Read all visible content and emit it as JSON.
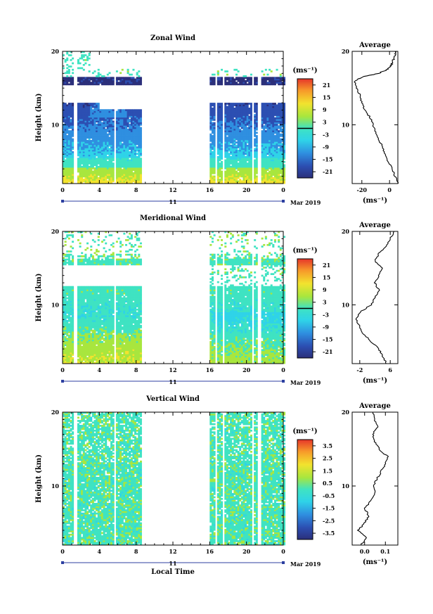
{
  "chart_data": [
    {
      "type": "heatmap",
      "title": "Zonal Wind",
      "ylabel": "Height (km)",
      "xlabel": "",
      "x_ticks": [
        "0",
        "4",
        "8",
        "12",
        "16",
        "20",
        "0"
      ],
      "y_ticks": [
        "10",
        "20"
      ],
      "xlim": [
        0,
        24
      ],
      "ylim": [
        2,
        20
      ],
      "date_day": "11",
      "date_label": "Mar 2019",
      "colorbar": {
        "unit_label": "(ms⁻¹)",
        "ticks": [
          "21",
          "15",
          "9",
          "3",
          "-3",
          "-9",
          "-15",
          "-21"
        ],
        "range": [
          -24,
          24
        ],
        "contour_value": 0
      },
      "data_gaps_hours": [
        [
          1.3,
          1.6
        ],
        [
          5.6,
          5.9
        ],
        [
          8.6,
          16.0
        ],
        [
          16.6,
          16.8
        ],
        [
          17.3,
          17.5
        ],
        [
          20.5,
          20.7
        ],
        [
          21.2,
          21.5
        ]
      ],
      "profile": {
        "title": "Average",
        "x_ticks": [
          "-20",
          "0"
        ],
        "xlim": [
          -27,
          6
        ],
        "xlabel": "(ms⁻¹)",
        "y_ticks": [
          "10",
          "20"
        ],
        "points": [
          [
            6,
            2
          ],
          [
            4,
            3
          ],
          [
            2,
            4
          ],
          [
            -1,
            5
          ],
          [
            -3,
            6
          ],
          [
            -5,
            7
          ],
          [
            -8,
            8
          ],
          [
            -10,
            9
          ],
          [
            -12,
            10
          ],
          [
            -14,
            11
          ],
          [
            -18,
            12
          ],
          [
            -20,
            13
          ],
          [
            -21,
            14
          ],
          [
            -24,
            15
          ],
          [
            -25,
            16
          ],
          [
            -20,
            16.5
          ],
          [
            -8,
            17
          ],
          [
            -2,
            17.5
          ],
          [
            1,
            18
          ],
          [
            2,
            18.5
          ],
          [
            3,
            19
          ],
          [
            4,
            19.5
          ],
          [
            5,
            20
          ]
        ]
      }
    },
    {
      "type": "heatmap",
      "title": "Meridional Wind",
      "ylabel": "Height (km)",
      "xlabel": "",
      "x_ticks": [
        "0",
        "4",
        "8",
        "12",
        "16",
        "20",
        "0"
      ],
      "y_ticks": [
        "10",
        "20"
      ],
      "xlim": [
        0,
        24
      ],
      "ylim": [
        2,
        20
      ],
      "date_day": "11",
      "date_label": "Mar 2019",
      "colorbar": {
        "unit_label": "(ms⁻¹)",
        "ticks": [
          "21",
          "15",
          "9",
          "3",
          "-3",
          "-9",
          "-15",
          "-21"
        ],
        "range": [
          -24,
          24
        ],
        "contour_value": 0
      },
      "data_gaps_hours": [
        [
          1.3,
          1.6
        ],
        [
          5.6,
          5.9
        ],
        [
          8.6,
          16.0
        ],
        [
          16.6,
          16.8
        ],
        [
          17.3,
          17.5
        ],
        [
          20.5,
          20.7
        ],
        [
          21.2,
          21.5
        ]
      ],
      "profile": {
        "title": "Average",
        "x_ticks": [
          "-2",
          "6"
        ],
        "xlim": [
          -4,
          8
        ],
        "xlabel": "(ms⁻¹)",
        "y_ticks": [
          "10",
          "20"
        ],
        "points": [
          [
            5,
            2
          ],
          [
            4,
            3
          ],
          [
            3,
            4
          ],
          [
            1,
            5
          ],
          [
            -1,
            6
          ],
          [
            -2,
            7
          ],
          [
            -3,
            8
          ],
          [
            -2,
            9
          ],
          [
            1,
            10
          ],
          [
            2,
            11
          ],
          [
            3,
            12
          ],
          [
            2,
            13
          ],
          [
            3,
            14
          ],
          [
            4,
            15
          ],
          [
            2,
            16
          ],
          [
            3,
            17
          ],
          [
            5,
            18
          ],
          [
            6,
            19
          ],
          [
            7,
            20
          ]
        ]
      }
    },
    {
      "type": "heatmap",
      "title": "Vertical Wind",
      "ylabel": "Height (km)",
      "xlabel": "Local Time",
      "x_ticks": [
        "0",
        "4",
        "8",
        "12",
        "16",
        "20",
        "0"
      ],
      "y_ticks": [
        "10",
        "20"
      ],
      "xlim": [
        0,
        24
      ],
      "ylim": [
        2,
        20
      ],
      "date_day": "11",
      "date_label": "Mar 2019",
      "colorbar": {
        "unit_label": "(ms⁻¹)",
        "ticks": [
          "3.5",
          "2.5",
          "1.5",
          "0.5",
          "-0.5",
          "-1.5",
          "-2.5",
          "-3.5"
        ],
        "range": [
          -4,
          4
        ]
      },
      "data_gaps_hours": [
        [
          1.3,
          1.6
        ],
        [
          5.6,
          5.9
        ],
        [
          8.6,
          16.0
        ],
        [
          16.6,
          16.8
        ],
        [
          17.3,
          17.5
        ],
        [
          20.5,
          20.7
        ],
        [
          21.2,
          21.5
        ]
      ],
      "profile": {
        "title": "Average",
        "x_ticks": [
          "0.0",
          "0.1"
        ],
        "xlim": [
          -0.06,
          0.16
        ],
        "xlabel": "(ms⁻¹)",
        "y_ticks": [
          "10",
          "20"
        ],
        "points": [
          [
            -0.02,
            2
          ],
          [
            0.01,
            3
          ],
          [
            -0.03,
            4
          ],
          [
            0.0,
            5
          ],
          [
            0.02,
            6
          ],
          [
            0.0,
            7
          ],
          [
            0.03,
            8
          ],
          [
            0.05,
            9
          ],
          [
            0.04,
            10
          ],
          [
            0.06,
            11
          ],
          [
            0.08,
            12
          ],
          [
            0.1,
            13
          ],
          [
            0.11,
            14
          ],
          [
            0.07,
            15
          ],
          [
            0.05,
            16
          ],
          [
            0.04,
            17
          ],
          [
            0.06,
            18
          ],
          [
            0.05,
            19
          ],
          [
            0.04,
            20
          ]
        ]
      }
    }
  ]
}
